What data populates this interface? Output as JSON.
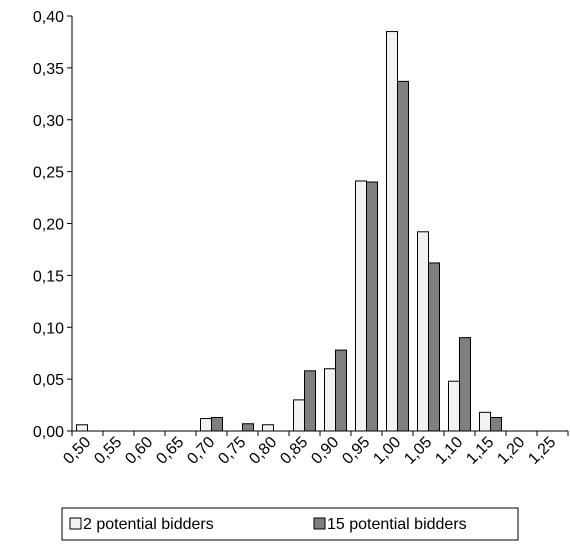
{
  "chart_data": {
    "type": "bar",
    "categories": [
      "0,50",
      "0,55",
      "0,60",
      "0,65",
      "0,70",
      "0,75",
      "0,80",
      "0,85",
      "0,90",
      "0,95",
      "1,00",
      "1,05",
      "1,10",
      "1,15",
      "1,20",
      "1,25"
    ],
    "series": [
      {
        "name": "2 potential bidders",
        "color": "#f2f2f2",
        "values": [
          0.006,
          0,
          0,
          0,
          0.012,
          0,
          0.006,
          0.03,
          0.06,
          0.241,
          0.385,
          0.192,
          0.048,
          0.018,
          0,
          0
        ]
      },
      {
        "name": "15 potential bidders",
        "color": "#7f7f7f",
        "values": [
          0,
          0,
          0,
          0,
          0.013,
          0.007,
          0,
          0.058,
          0.078,
          0.24,
          0.337,
          0.162,
          0.09,
          0.013,
          0,
          0
        ]
      }
    ],
    "y_ticks": [
      "0,00",
      "0,05",
      "0,10",
      "0,15",
      "0,20",
      "0,25",
      "0,30",
      "0,35",
      "0,40"
    ],
    "ylim": [
      0,
      0.4
    ],
    "grid": false,
    "legend_position": "bottom",
    "title": "",
    "xlabel": "",
    "ylabel": ""
  }
}
